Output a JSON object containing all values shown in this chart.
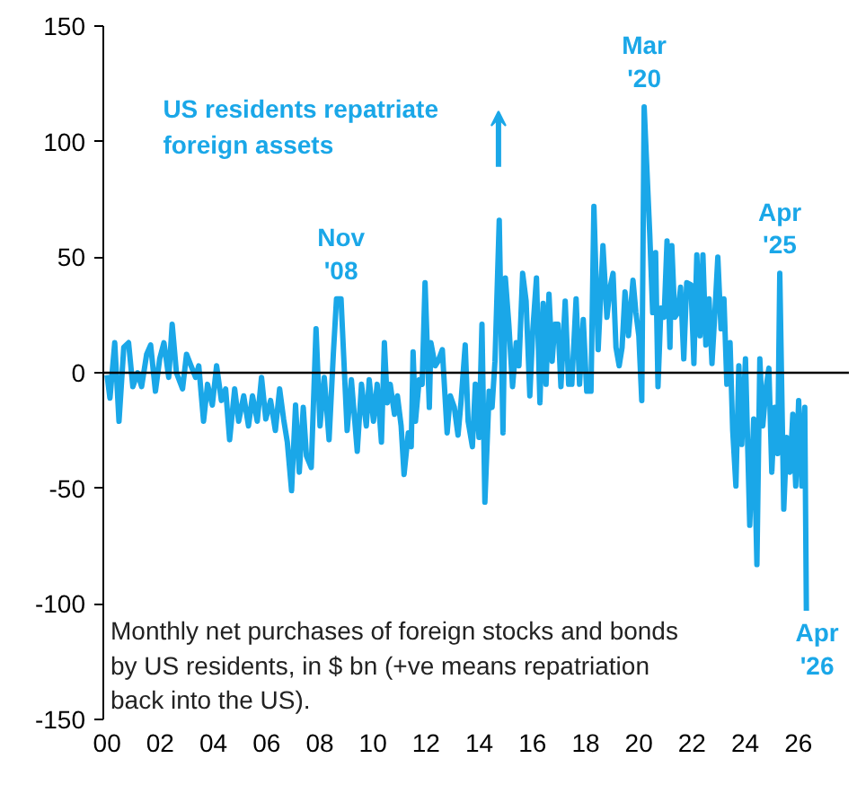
{
  "chart_data": {
    "type": "line",
    "x": [
      2000.0,
      2000.11,
      2000.29,
      2000.45,
      2000.63,
      2000.81,
      2000.97,
      2001.15,
      2001.3,
      2001.49,
      2001.64,
      2001.82,
      2001.98,
      2002.14,
      2002.32,
      2002.45,
      2002.61,
      2002.84,
      2002.99,
      2003.16,
      2003.33,
      2003.45,
      2003.63,
      2003.78,
      2003.96,
      2004.12,
      2004.3,
      2004.46,
      2004.61,
      2004.8,
      2004.95,
      2005.14,
      2005.32,
      2005.47,
      2005.65,
      2005.81,
      2005.97,
      2006.15,
      2006.33,
      2006.49,
      2006.64,
      2006.78,
      2006.94,
      2007.09,
      2007.23,
      2007.38,
      2007.5,
      2007.68,
      2007.86,
      2008.01,
      2008.17,
      2008.35,
      2008.51,
      2008.63,
      2008.8,
      2009.03,
      2009.19,
      2009.41,
      2009.57,
      2009.75,
      2009.86,
      2010.02,
      2010.16,
      2010.32,
      2010.43,
      2010.54,
      2010.65,
      2010.81,
      2010.92,
      2011.06,
      2011.17,
      2011.33,
      2011.44,
      2011.51,
      2011.6,
      2011.74,
      2011.85,
      2011.96,
      2012.12,
      2012.18,
      2012.34,
      2012.45,
      2012.61,
      2012.79,
      2012.91,
      2013.06,
      2013.2,
      2013.31,
      2013.47,
      2013.58,
      2013.74,
      2013.85,
      2013.99,
      2014.1,
      2014.21,
      2014.37,
      2014.48,
      2014.59,
      2014.75,
      2014.89,
      2014.98,
      2015.11,
      2015.25,
      2015.39,
      2015.49,
      2015.63,
      2015.76,
      2015.9,
      2016.01,
      2016.15,
      2016.28,
      2016.4,
      2016.51,
      2016.62,
      2016.74,
      2016.84,
      2016.96,
      2017.07,
      2017.23,
      2017.36,
      2017.48,
      2017.64,
      2017.77,
      2017.91,
      2018.04,
      2018.2,
      2018.31,
      2018.47,
      2018.65,
      2018.8,
      2018.92,
      2019.03,
      2019.14,
      2019.26,
      2019.37,
      2019.48,
      2019.61,
      2019.78,
      2019.89,
      2020.0,
      2020.11,
      2020.2,
      2020.41,
      2020.52,
      2020.63,
      2020.72,
      2020.83,
      2020.95,
      2021.06,
      2021.17,
      2021.24,
      2021.35,
      2021.47,
      2021.57,
      2021.69,
      2021.8,
      2021.96,
      2022.07,
      2022.18,
      2022.3,
      2022.41,
      2022.52,
      2022.64,
      2022.75,
      2022.86,
      2022.97,
      2023.09,
      2023.2,
      2023.31,
      2023.43,
      2023.53,
      2023.65,
      2023.76,
      2023.87,
      2024.01,
      2024.17,
      2024.32,
      2024.44,
      2024.55,
      2024.66,
      2024.78,
      2024.89,
      2025.0,
      2025.11,
      2025.22,
      2025.3,
      2025.45,
      2025.56,
      2025.68,
      2025.79,
      2025.9,
      2026.01,
      2026.13,
      2026.24,
      2026.3
    ],
    "series": [
      {
        "color": "#1aa7e8",
        "values": [
          -1,
          -11,
          13,
          -21,
          11,
          13,
          -6,
          0,
          -6,
          8,
          12,
          -8,
          6,
          13,
          -2,
          21,
          0,
          -7,
          8,
          3,
          -2,
          3,
          -21,
          -5,
          -14,
          3,
          -12,
          -7,
          -29,
          -7,
          -21,
          -10,
          -23,
          -10,
          -21,
          -2,
          -20,
          -12,
          -25,
          -7,
          -20,
          -30,
          -51,
          -14,
          -43,
          -15,
          -36,
          -41,
          19,
          -23,
          -2,
          -29,
          8,
          32,
          32,
          -25,
          -3,
          -34,
          -5,
          -23,
          -3,
          -21,
          -5,
          -30,
          13,
          -13,
          -5,
          -18,
          -10,
          -23,
          -44,
          -26,
          -32,
          9,
          -21,
          -3,
          -5,
          39,
          -15,
          13,
          3,
          5,
          10,
          -26,
          -10,
          -15,
          -27,
          -13,
          12,
          -21,
          -32,
          -5,
          -28,
          21,
          -56,
          -8,
          -15,
          5,
          66,
          -26,
          41,
          21,
          -6,
          13,
          3,
          43,
          31,
          -10,
          18,
          41,
          -13,
          30,
          -5,
          34,
          5,
          21,
          21,
          -6,
          31,
          -5,
          -5,
          32,
          -5,
          23,
          -8,
          -8,
          72,
          10,
          55,
          24,
          37,
          43,
          11,
          3,
          11,
          35,
          16,
          40,
          26,
          16,
          -12,
          115,
          60,
          26,
          52,
          -6,
          28,
          24,
          57,
          11,
          55,
          24,
          26,
          37,
          6,
          39,
          38,
          4,
          51,
          16,
          51,
          12,
          32,
          4,
          26,
          50,
          19,
          32,
          -5,
          13,
          -25,
          -49,
          3,
          -31,
          6,
          -66,
          -20,
          -83,
          6,
          -23,
          -7,
          2,
          -43,
          -15,
          -35,
          43,
          -59,
          -28,
          -43,
          -18,
          -49,
          -12,
          -49,
          -15,
          -103
        ]
      }
    ],
    "xlim": [
      1999.86,
      2027.9
    ],
    "ylim": [
      -150,
      150
    ],
    "xticks": [
      {
        "value": 2000,
        "label": "00"
      },
      {
        "value": 2002,
        "label": "02"
      },
      {
        "value": 2004,
        "label": "04"
      },
      {
        "value": 2006,
        "label": "06"
      },
      {
        "value": 2008,
        "label": "08"
      },
      {
        "value": 2010,
        "label": "10"
      },
      {
        "value": 2012,
        "label": "12"
      },
      {
        "value": 2014,
        "label": "14"
      },
      {
        "value": 2016,
        "label": "16"
      },
      {
        "value": 2018,
        "label": "18"
      },
      {
        "value": 2020,
        "label": "20"
      },
      {
        "value": 2022,
        "label": "22"
      },
      {
        "value": 2024,
        "label": "24"
      },
      {
        "value": 2026,
        "label": "26"
      }
    ],
    "yticks": [
      -150,
      -100,
      -50,
      0,
      50,
      100,
      150
    ],
    "ref_lines": [
      {
        "axis": "y",
        "value": 0,
        "color": "#000000"
      }
    ],
    "annotations": [
      "US residents repatriate\nforeign assets",
      {
        "text": "Nov\n'08",
        "x": 2008.8,
        "y": 32
      },
      {
        "text": "Mar\n'20",
        "x": 2020.2,
        "y": 115
      },
      {
        "text": "Apr\n'25",
        "x": 2025.3,
        "y": 43
      },
      {
        "text": "Apr\n'26",
        "x": 2026.3,
        "y": -103
      },
      "Monthly net purchases of foreign stocks and bonds by US residents, in $ bn (+ve means repatriation back into the US)."
    ],
    "grid": false,
    "line_style": "solid",
    "marker": "none"
  }
}
